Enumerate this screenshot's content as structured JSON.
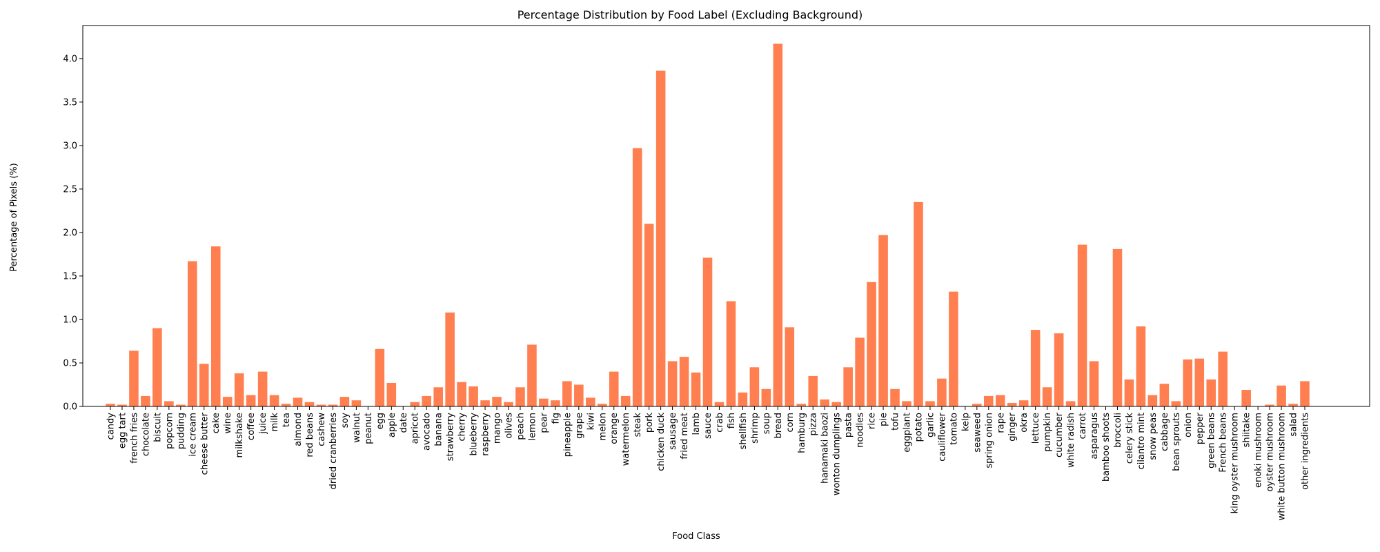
{
  "chart_data": {
    "type": "bar",
    "title": "Percentage Distribution by Food Label (Excluding Background)",
    "xlabel": "Food Class",
    "ylabel": "Percentage of Pixels (%)",
    "ylim": [
      0,
      4.38
    ],
    "yticks": [
      0.0,
      0.5,
      1.0,
      1.5,
      2.0,
      2.5,
      3.0,
      3.5,
      4.0
    ],
    "ytick_labels": [
      "0.0",
      "0.5",
      "1.0",
      "1.5",
      "2.0",
      "2.5",
      "3.0",
      "3.5",
      "4.0"
    ],
    "grid": false,
    "bar_color": "#ff7f50",
    "categories": [
      "candy",
      "egg tart",
      "french fries",
      "chocolate",
      "biscuit",
      "popcorn",
      "pudding",
      "ice cream",
      "cheese butter",
      "cake",
      "wine",
      "milkshake",
      "coffee",
      "juice",
      "milk",
      "tea",
      "almond",
      "red beans",
      "cashew",
      "dried cranberries",
      "soy",
      "walnut",
      "peanut",
      "egg",
      "apple",
      "date",
      "apricot",
      "avocado",
      "banana",
      "strawberry",
      "cherry",
      "blueberry",
      "raspberry",
      "mango",
      "olives",
      "peach",
      "lemon",
      "pear",
      "fig",
      "pineapple",
      "grape",
      "kiwi",
      "melon",
      "orange",
      "watermelon",
      "steak",
      "pork",
      "chicken duck",
      "sausage",
      "fried meat",
      "lamb",
      "sauce",
      "crab",
      "fish",
      "shellfish",
      "shrimp",
      "soup",
      "bread",
      "corn",
      "hamburg",
      "pizza",
      "hanamaki baozi",
      "wonton dumplings",
      "pasta",
      "noodles",
      "rice",
      "pie",
      "tofu",
      "eggplant",
      "potato",
      "garlic",
      "cauliflower",
      "tomato",
      "kelp",
      "seaweed",
      "spring onion",
      "rape",
      "ginger",
      "okra",
      "lettuce",
      "pumpkin",
      "cucumber",
      "white radish",
      "carrot",
      "asparagus",
      "bamboo shoots",
      "broccoli",
      "celery stick",
      "cilantro mint",
      "snow peas",
      "cabbage",
      "bean sprouts",
      "onion",
      "pepper",
      "green beans",
      "French beans",
      "king oyster mushroom",
      "shiitake",
      "enoki mushroom",
      "oyster mushroom",
      "white button mushroom",
      "salad",
      "other ingredients"
    ],
    "values": [
      0.03,
      0.02,
      0.64,
      0.12,
      0.9,
      0.06,
      0.02,
      1.67,
      0.49,
      1.84,
      0.11,
      0.38,
      0.13,
      0.4,
      0.13,
      0.03,
      0.1,
      0.05,
      0.02,
      0.02,
      0.11,
      0.07,
      0.0,
      0.66,
      0.27,
      0.0,
      0.05,
      0.12,
      0.22,
      1.08,
      0.28,
      0.23,
      0.07,
      0.11,
      0.05,
      0.22,
      0.71,
      0.09,
      0.07,
      0.29,
      0.25,
      0.1,
      0.03,
      0.4,
      0.12,
      2.97,
      2.1,
      3.86,
      0.52,
      0.57,
      0.39,
      1.71,
      0.05,
      1.21,
      0.16,
      0.45,
      0.2,
      4.17,
      0.91,
      0.03,
      0.35,
      0.08,
      0.05,
      0.45,
      0.79,
      1.43,
      1.97,
      0.2,
      0.06,
      2.35,
      0.06,
      0.32,
      1.32,
      0.0,
      0.03,
      0.12,
      0.13,
      0.04,
      0.07,
      0.88,
      0.22,
      0.84,
      0.06,
      1.86,
      0.52,
      0.0,
      1.81,
      0.31,
      0.92,
      0.13,
      0.26,
      0.06,
      0.54,
      0.55,
      0.31,
      0.63,
      0.0,
      0.19,
      0.0,
      0.02,
      0.24,
      0.03,
      0.29
    ]
  }
}
